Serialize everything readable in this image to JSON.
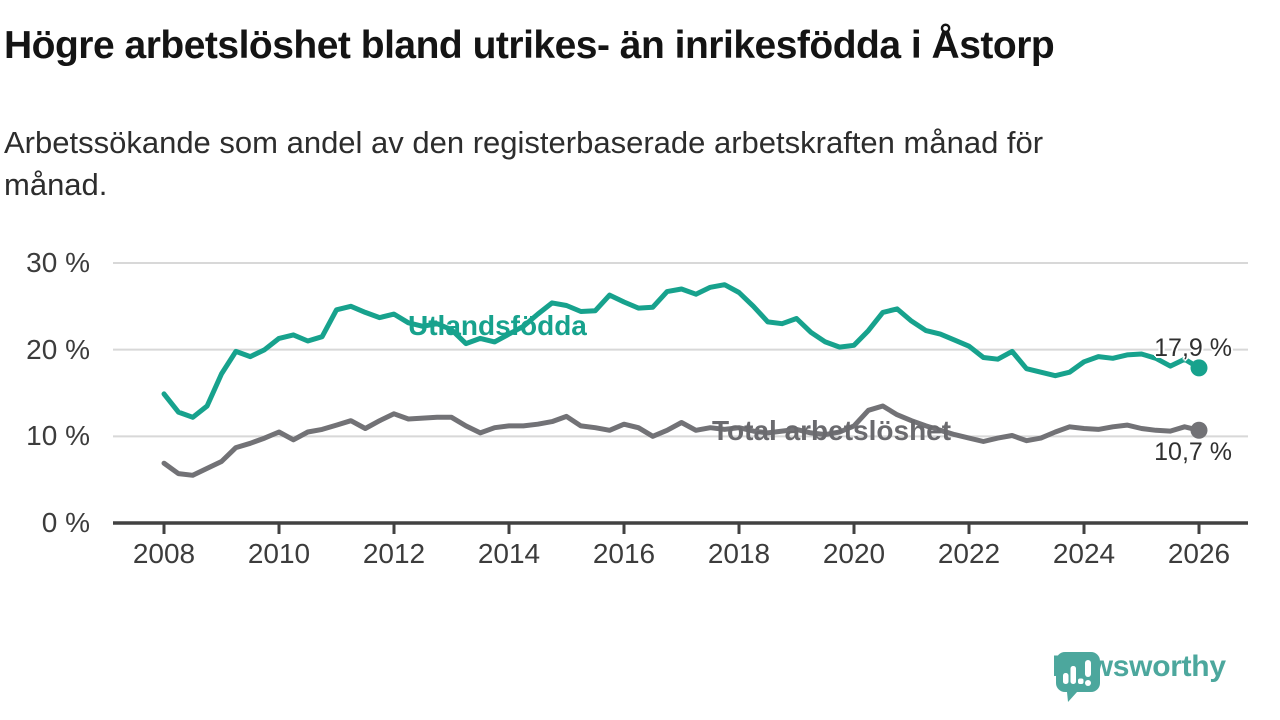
{
  "header": {
    "title": "Högre arbetslöshet bland utrikes- än inrikesfödda i Åstorp",
    "subtitle_lines": [
      "Arbetssökande som andel av den registerbaserade arbetskraften månad för",
      "månad."
    ]
  },
  "footer": {
    "brand": "Newsworthy",
    "brand_color": "#4CA79D"
  },
  "colors": {
    "background": "#ffffff",
    "grid": "#d8d8d8",
    "axis": "#414141",
    "axis_text": "#3c3c3c",
    "teal": "#17A28D",
    "gray": "#727276",
    "gray_label": "#6A6A6E"
  },
  "chart_data": {
    "type": "line",
    "title": "Högre arbetslöshet bland utrikes- än inrikesfödda i Åstorp",
    "subtitle": "Arbetssökande som andel av den registerbaserade arbetskraften månad för månad.",
    "grid": "horizontal-only",
    "legend": "inline-labels",
    "unit": "%",
    "x_axis": {
      "range": [
        2008,
        2026.9
      ],
      "tick_values": [
        2008,
        2010,
        2012,
        2014,
        2016,
        2018,
        2020,
        2022,
        2024,
        2026
      ],
      "tick_labels": [
        "2008",
        "2010",
        "2012",
        "2014",
        "2016",
        "2018",
        "2020",
        "2022",
        "2024",
        "2026"
      ]
    },
    "y_axis": {
      "range": [
        0,
        30
      ],
      "tick_values": [
        0,
        10,
        20,
        30
      ],
      "tick_labels": [
        "0 %",
        "10 %",
        "20 %",
        "30 %"
      ]
    },
    "sampling": "quarterly",
    "x_start": 2008,
    "x_step": 0.25,
    "series": [
      {
        "name": "Utlandsfödda",
        "color": "#17A28D",
        "end_label": "17,9 %",
        "end_value": 17.9,
        "values": [
          14.9,
          12.8,
          12.2,
          13.5,
          17.2,
          19.8,
          19.2,
          20.0,
          21.3,
          21.7,
          21.0,
          21.5,
          24.6,
          25.0,
          24.3,
          23.7,
          24.1,
          23.1,
          22.7,
          23.0,
          22.3,
          20.7,
          21.3,
          20.9,
          21.8,
          22.7,
          24.1,
          25.4,
          25.1,
          24.4,
          24.5,
          26.3,
          25.5,
          24.8,
          24.9,
          26.7,
          27.0,
          26.4,
          27.2,
          27.5,
          26.6,
          25.0,
          23.2,
          23.0,
          23.6,
          22.0,
          20.9,
          20.3,
          20.5,
          22.2,
          24.3,
          24.7,
          23.3,
          22.2,
          21.8,
          21.1,
          20.4,
          19.1,
          18.9,
          19.8,
          17.8,
          17.4,
          17.0,
          17.4,
          18.6,
          19.2,
          19.0,
          19.4,
          19.5,
          19.0,
          18.1,
          18.9,
          17.9
        ]
      },
      {
        "name": "Total arbetslöshet",
        "color": "#727276",
        "end_label": "10,7 %",
        "end_value": 10.7,
        "values": [
          6.9,
          5.7,
          5.5,
          6.3,
          7.1,
          8.7,
          9.2,
          9.8,
          10.5,
          9.6,
          10.5,
          10.8,
          11.3,
          11.8,
          10.9,
          11.8,
          12.6,
          12.0,
          12.1,
          12.2,
          12.2,
          11.2,
          10.4,
          11.0,
          11.2,
          11.2,
          11.4,
          11.7,
          12.3,
          11.2,
          11.0,
          10.7,
          11.4,
          11.0,
          10.0,
          10.7,
          11.6,
          10.7,
          11.0,
          10.8,
          11.0,
          10.6,
          10.4,
          10.6,
          10.8,
          10.4,
          10.2,
          10.5,
          11.2,
          13.0,
          13.5,
          12.5,
          11.8,
          11.2,
          10.7,
          10.2,
          9.8,
          9.4,
          9.8,
          10.1,
          9.5,
          9.8,
          10.5,
          11.1,
          10.9,
          10.8,
          11.1,
          11.3,
          10.9,
          10.7,
          10.6,
          11.1,
          10.7
        ]
      }
    ]
  }
}
